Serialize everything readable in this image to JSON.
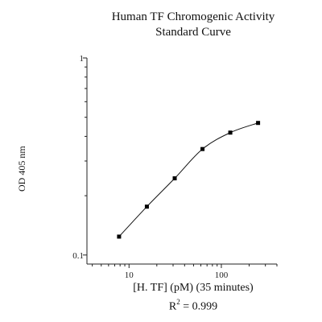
{
  "chart_data": {
    "type": "scatter",
    "title": "Human TF Chromogenic Activity",
    "subtitle": "Standard Curve",
    "xlabel": "[H. TF] (pM) (35 minutes)",
    "ylabel": "OD 405 nm",
    "annotation": {
      "prefix": "R",
      "sup": "2",
      "suffix": " = 0.999"
    },
    "x_scale": "log",
    "y_scale": "log",
    "xlim": [
      3.5,
      400
    ],
    "ylim": [
      0.1,
      1
    ],
    "x_ticks": [
      {
        "value": 10,
        "label": "10"
      },
      {
        "value": 100,
        "label": "100"
      }
    ],
    "y_ticks": [
      {
        "value": 0.1,
        "label": "0.1"
      },
      {
        "value": 1,
        "label": "1"
      }
    ],
    "grid": false,
    "fit_line": true,
    "series": [
      {
        "x": [
          7.8,
          15.6,
          31.25,
          62.5,
          125,
          250
        ],
        "y": [
          0.124,
          0.176,
          0.245,
          0.345,
          0.418,
          0.468
        ]
      }
    ]
  }
}
